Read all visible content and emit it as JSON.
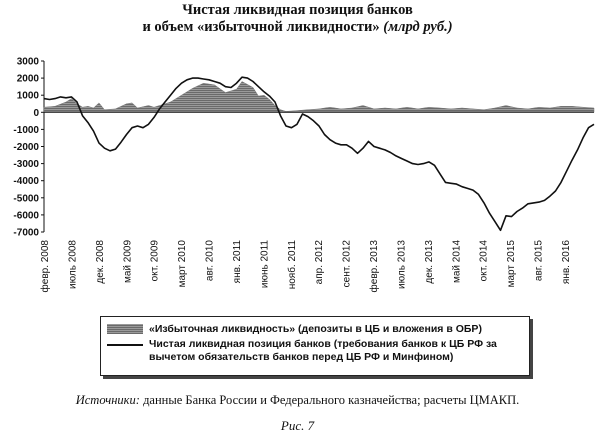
{
  "title": {
    "line1": "Чистая ликвидная позиция банков",
    "line2": "и объем «избыточной ликвидности»",
    "unit": "(млрд руб.)"
  },
  "chart_data": {
    "type": "line",
    "ylim": [
      -7000,
      3000
    ],
    "yticks": [
      3000,
      2000,
      1000,
      0,
      -1000,
      -2000,
      -3000,
      -4000,
      -5000,
      -6000,
      -7000
    ],
    "xticks": [
      "февр. 2008",
      "июль 2008",
      "дек. 2008",
      "май 2009",
      "окт. 2009",
      "март 2010",
      "авг. 2010",
      "янв. 2011",
      "июнь 2011",
      "нояб. 2011",
      "апр. 2012",
      "сент. 2012",
      "февр. 2013",
      "июль 2013",
      "дек. 2013",
      "май 2014",
      "окт. 2014",
      "март 2015",
      "авг. 2015",
      "янв. 2016"
    ],
    "x_range_months": [
      "2008-02",
      "2016-06"
    ],
    "series": [
      {
        "name": "«Избыточная ликвидность» (депозиты в ЦБ и вложения в ОБР)",
        "style": "area",
        "points": [
          [
            "2008-02",
            300
          ],
          [
            "2008-04",
            350
          ],
          [
            "2008-06",
            600
          ],
          [
            "2008-07",
            800
          ],
          [
            "2008-08",
            500
          ],
          [
            "2008-09",
            300
          ],
          [
            "2008-10",
            350
          ],
          [
            "2008-11",
            250
          ],
          [
            "2008-12",
            550
          ],
          [
            "2009-01",
            150
          ],
          [
            "2009-03",
            200
          ],
          [
            "2009-05",
            500
          ],
          [
            "2009-06",
            550
          ],
          [
            "2009-07",
            250
          ],
          [
            "2009-09",
            400
          ],
          [
            "2009-10",
            300
          ],
          [
            "2009-12",
            500
          ],
          [
            "2010-01",
            600
          ],
          [
            "2010-03",
            1000
          ],
          [
            "2010-05",
            1400
          ],
          [
            "2010-07",
            1700
          ],
          [
            "2010-09",
            1600
          ],
          [
            "2010-11",
            1150
          ],
          [
            "2011-01",
            1350
          ],
          [
            "2011-02",
            1800
          ],
          [
            "2011-04",
            1450
          ],
          [
            "2011-05",
            950
          ],
          [
            "2011-06",
            1000
          ],
          [
            "2011-07",
            750
          ],
          [
            "2011-08",
            400
          ],
          [
            "2011-09",
            150
          ],
          [
            "2011-10",
            50
          ],
          [
            "2011-12",
            100
          ],
          [
            "2012-02",
            150
          ],
          [
            "2012-04",
            200
          ],
          [
            "2012-06",
            300
          ],
          [
            "2012-08",
            200
          ],
          [
            "2012-10",
            250
          ],
          [
            "2012-12",
            400
          ],
          [
            "2013-02",
            200
          ],
          [
            "2013-04",
            250
          ],
          [
            "2013-06",
            200
          ],
          [
            "2013-08",
            300
          ],
          [
            "2013-10",
            200
          ],
          [
            "2013-12",
            300
          ],
          [
            "2014-02",
            250
          ],
          [
            "2014-04",
            200
          ],
          [
            "2014-06",
            250
          ],
          [
            "2014-08",
            200
          ],
          [
            "2014-10",
            150
          ],
          [
            "2014-12",
            250
          ],
          [
            "2015-02",
            400
          ],
          [
            "2015-04",
            250
          ],
          [
            "2015-06",
            200
          ],
          [
            "2015-08",
            300
          ],
          [
            "2015-10",
            250
          ],
          [
            "2015-12",
            350
          ],
          [
            "2016-02",
            350
          ],
          [
            "2016-04",
            300
          ],
          [
            "2016-06",
            250
          ]
        ]
      },
      {
        "name": "Чистая ликвидная позиция банков (требования банков к ЦБ РФ за вычетом обязательств банков перед ЦБ РФ и Минфином)",
        "style": "line",
        "points": [
          [
            "2008-02",
            800
          ],
          [
            "2008-03",
            750
          ],
          [
            "2008-04",
            800
          ],
          [
            "2008-05",
            900
          ],
          [
            "2008-06",
            850
          ],
          [
            "2008-07",
            900
          ],
          [
            "2008-08",
            600
          ],
          [
            "2008-09",
            -200
          ],
          [
            "2008-10",
            -600
          ],
          [
            "2008-11",
            -1100
          ],
          [
            "2008-12",
            -1800
          ],
          [
            "2009-01",
            -2100
          ],
          [
            "2009-02",
            -2250
          ],
          [
            "2009-03",
            -2150
          ],
          [
            "2009-04",
            -1750
          ],
          [
            "2009-05",
            -1300
          ],
          [
            "2009-06",
            -900
          ],
          [
            "2009-07",
            -800
          ],
          [
            "2009-08",
            -900
          ],
          [
            "2009-09",
            -700
          ],
          [
            "2009-10",
            -300
          ],
          [
            "2009-11",
            200
          ],
          [
            "2009-12",
            600
          ],
          [
            "2010-01",
            1000
          ],
          [
            "2010-02",
            1400
          ],
          [
            "2010-03",
            1700
          ],
          [
            "2010-04",
            1900
          ],
          [
            "2010-05",
            2000
          ],
          [
            "2010-06",
            2000
          ],
          [
            "2010-07",
            1950
          ],
          [
            "2010-08",
            1900
          ],
          [
            "2010-09",
            1800
          ],
          [
            "2010-10",
            1700
          ],
          [
            "2010-11",
            1500
          ],
          [
            "2010-12",
            1450
          ],
          [
            "2011-01",
            1700
          ],
          [
            "2011-02",
            2050
          ],
          [
            "2011-03",
            2000
          ],
          [
            "2011-04",
            1800
          ],
          [
            "2011-05",
            1500
          ],
          [
            "2011-06",
            1200
          ],
          [
            "2011-07",
            950
          ],
          [
            "2011-08",
            600
          ],
          [
            "2011-09",
            -200
          ],
          [
            "2011-10",
            -800
          ],
          [
            "2011-11",
            -900
          ],
          [
            "2011-12",
            -700
          ],
          [
            "2012-01",
            -100
          ],
          [
            "2012-02",
            -250
          ],
          [
            "2012-03",
            -500
          ],
          [
            "2012-04",
            -800
          ],
          [
            "2012-05",
            -1300
          ],
          [
            "2012-06",
            -1600
          ],
          [
            "2012-07",
            -1800
          ],
          [
            "2012-08",
            -1900
          ],
          [
            "2012-09",
            -1900
          ],
          [
            "2012-10",
            -2100
          ],
          [
            "2012-11",
            -2400
          ],
          [
            "2012-12",
            -2100
          ],
          [
            "2013-01",
            -1700
          ],
          [
            "2013-02",
            -2000
          ],
          [
            "2013-03",
            -2100
          ],
          [
            "2013-04",
            -2200
          ],
          [
            "2013-05",
            -2350
          ],
          [
            "2013-06",
            -2550
          ],
          [
            "2013-07",
            -2700
          ],
          [
            "2013-08",
            -2850
          ],
          [
            "2013-09",
            -3000
          ],
          [
            "2013-10",
            -3050
          ],
          [
            "2013-11",
            -3000
          ],
          [
            "2013-12",
            -2900
          ],
          [
            "2014-01",
            -3100
          ],
          [
            "2014-02",
            -3600
          ],
          [
            "2014-03",
            -4100
          ],
          [
            "2014-04",
            -4150
          ],
          [
            "2014-05",
            -4200
          ],
          [
            "2014-06",
            -4350
          ],
          [
            "2014-07",
            -4450
          ],
          [
            "2014-08",
            -4550
          ],
          [
            "2014-09",
            -4800
          ],
          [
            "2014-10",
            -5300
          ],
          [
            "2014-11",
            -5900
          ],
          [
            "2014-12",
            -6400
          ],
          [
            "2015-01",
            -6900
          ],
          [
            "2015-02",
            -6050
          ],
          [
            "2015-03",
            -6100
          ],
          [
            "2015-04",
            -5800
          ],
          [
            "2015-05",
            -5600
          ],
          [
            "2015-06",
            -5350
          ],
          [
            "2015-07",
            -5300
          ],
          [
            "2015-08",
            -5250
          ],
          [
            "2015-09",
            -5150
          ],
          [
            "2015-10",
            -4900
          ],
          [
            "2015-11",
            -4600
          ],
          [
            "2015-12",
            -4100
          ],
          [
            "2016-01",
            -3450
          ],
          [
            "2016-02",
            -2800
          ],
          [
            "2016-03",
            -2200
          ],
          [
            "2016-04",
            -1500
          ],
          [
            "2016-05",
            -900
          ],
          [
            "2016-06",
            -700
          ]
        ]
      }
    ]
  },
  "source": {
    "label": "Источники:",
    "text": " данные Банка России и Федерального казначейства; расчеты ЦМАКП."
  },
  "caption": "Рис. 7"
}
